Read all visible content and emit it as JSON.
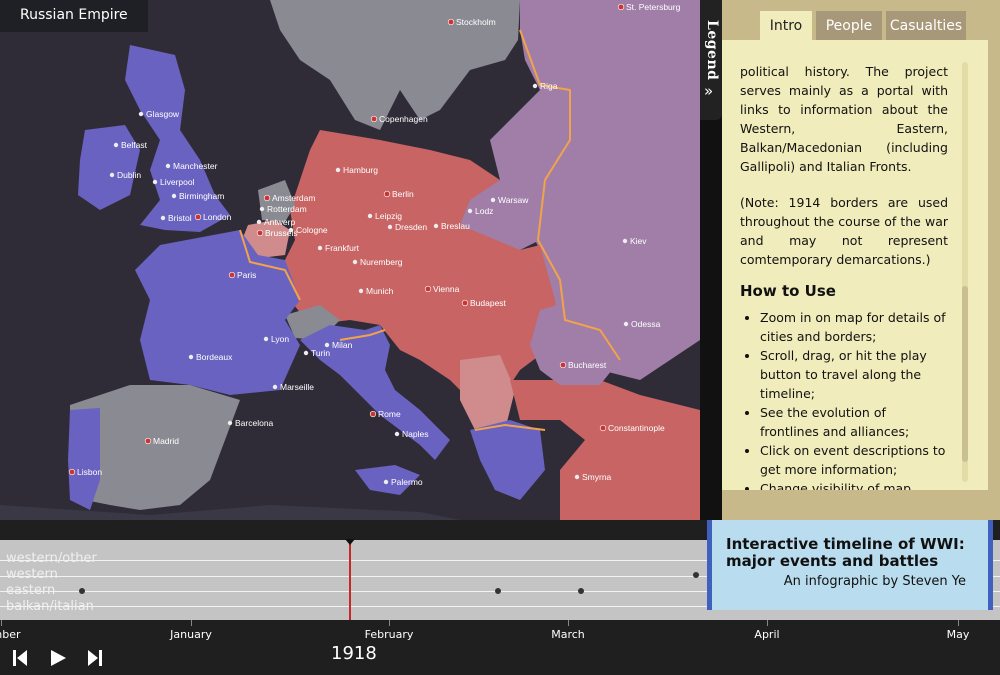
{
  "map": {
    "hover_country": "Russian Empire",
    "colors": {
      "sea": "#2f2c38",
      "entente": "#6a62c0",
      "central": "#c86464",
      "neutral": "#8a8a92",
      "russia": "#a07ea8",
      "occupied": "#d08c8c",
      "frontline": "#f2a24a",
      "capital_dot": "#cc3333"
    },
    "cities": [
      {
        "name": "St. Petersburg",
        "capital": true
      },
      {
        "name": "Stockholm",
        "capital": true
      },
      {
        "name": "Riga",
        "capital": false
      },
      {
        "name": "Glasgow",
        "capital": false
      },
      {
        "name": "Copenhagen",
        "capital": true
      },
      {
        "name": "Belfast",
        "capital": false
      },
      {
        "name": "Manchester",
        "capital": false
      },
      {
        "name": "Dublin",
        "capital": false
      },
      {
        "name": "Liverpool",
        "capital": false
      },
      {
        "name": "Birmingham",
        "capital": false
      },
      {
        "name": "Hamburg",
        "capital": false
      },
      {
        "name": "Berlin",
        "capital": true
      },
      {
        "name": "Amsterdam",
        "capital": true
      },
      {
        "name": "Rotterdam",
        "capital": false
      },
      {
        "name": "Warsaw",
        "capital": false
      },
      {
        "name": "London",
        "capital": true
      },
      {
        "name": "Bristol",
        "capital": false
      },
      {
        "name": "Antwerp",
        "capital": false
      },
      {
        "name": "Leipzig",
        "capital": false
      },
      {
        "name": "Lodz",
        "capital": false
      },
      {
        "name": "Cologne",
        "capital": false
      },
      {
        "name": "Dresden",
        "capital": false
      },
      {
        "name": "Breslau",
        "capital": false
      },
      {
        "name": "Brussels",
        "capital": true
      },
      {
        "name": "Kiev",
        "capital": false
      },
      {
        "name": "Frankfurt",
        "capital": false
      },
      {
        "name": "Nuremberg",
        "capital": false
      },
      {
        "name": "Paris",
        "capital": true
      },
      {
        "name": "Vienna",
        "capital": true
      },
      {
        "name": "Munich",
        "capital": false
      },
      {
        "name": "Budapest",
        "capital": true
      },
      {
        "name": "Odessa",
        "capital": false
      },
      {
        "name": "Lyon",
        "capital": false
      },
      {
        "name": "Milan",
        "capital": false
      },
      {
        "name": "Turin",
        "capital": false
      },
      {
        "name": "Bordeaux",
        "capital": false
      },
      {
        "name": "Bucharest",
        "capital": true
      },
      {
        "name": "Marseille",
        "capital": false
      },
      {
        "name": "Rome",
        "capital": true
      },
      {
        "name": "Barcelona",
        "capital": false
      },
      {
        "name": "Naples",
        "capital": false
      },
      {
        "name": "Madrid",
        "capital": true
      },
      {
        "name": "Constantinople",
        "capital": true
      },
      {
        "name": "Lisbon",
        "capital": true
      },
      {
        "name": "Smyrna",
        "capital": false
      },
      {
        "name": "Palermo",
        "capital": false
      }
    ]
  },
  "legend": {
    "label": "Legend",
    "chevron": "»"
  },
  "panel": {
    "tabs": [
      "Intro",
      "People",
      "Casualties"
    ],
    "active_tab": "Intro",
    "para1": "political history. The project serves mainly as a portal with links to information about the Western, Eastern, Balkan/Macedonian (including Gallipoli) and Italian Fronts.",
    "para2": "(Note: 1914 borders are used throughout the course of the war and may not represent comtemporary demarcations.)",
    "heading": "How to Use",
    "bullets": [
      "Zoom in on map for details of cities and borders;",
      "Scroll, drag, or hit the play button to travel along the timeline;",
      "See the evolution of frontlines and alliances;",
      "Click on event descriptions to get more information;",
      "Change visibility of map"
    ]
  },
  "timeline": {
    "lanes": [
      "western/other",
      "western",
      "eastern",
      "balkan/italian"
    ],
    "months": [
      "mber",
      "January",
      "February",
      "March",
      "April",
      "May"
    ],
    "year": "1918",
    "controls": [
      "skip-back-icon",
      "play-icon",
      "skip-forward-icon"
    ],
    "card": {
      "title": "Interactive timeline of WWI: major events and battles",
      "byline": "An infographic by Steven Ye"
    }
  }
}
